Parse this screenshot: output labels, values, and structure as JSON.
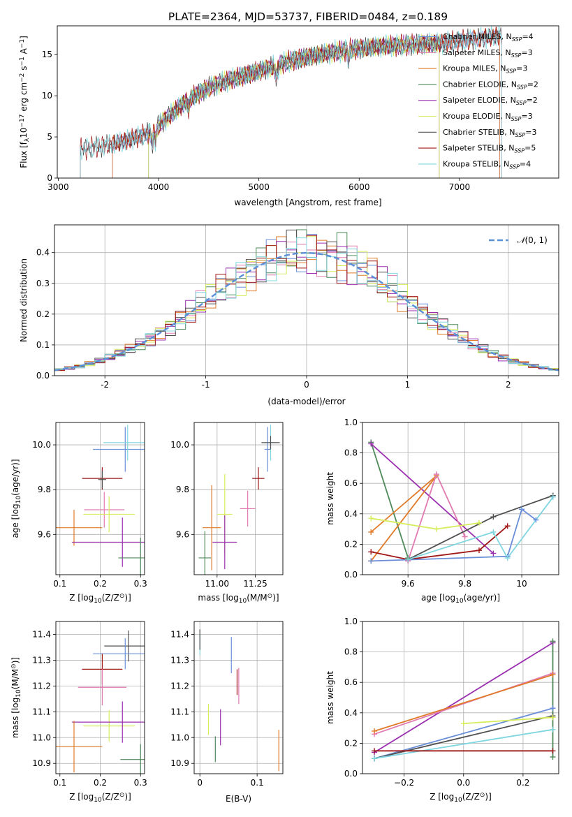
{
  "figure": {
    "title": "PLATE=2364, MJD=53737, FIBERID=0484, z=0.189"
  },
  "colors": {
    "chabrier_miles": "#6a8fd8",
    "salpeter_miles": "#e07ab0",
    "kroupa_miles": "#e07a28",
    "chabrier_elodie": "#4e8a5a",
    "salpeter_elodie": "#9a2fb0",
    "kroupa_elodie": "#d6ec5a",
    "chabrier_stelib": "#505050",
    "salpeter_stelib": "#a01818",
    "kroupa_stelib": "#7fd6e0",
    "gaussian": "#5b8fd8",
    "grid": "#b0b0b0"
  },
  "chart_data": [
    {
      "id": "spectrum",
      "type": "line",
      "xlabel": "wavelength [Angstrom, rest frame]",
      "ylabel_parts": [
        "Flux [f",
        "λ",
        "10",
        "−17",
        " erg cm",
        "−2",
        " s",
        "−1",
        " A",
        "−1",
        "]"
      ],
      "xlim": [
        2990,
        7990
      ],
      "ylim": [
        0,
        18.5
      ],
      "xticks": [
        3000,
        4000,
        5000,
        6000,
        7000
      ],
      "yticks": [
        0,
        5,
        10,
        15
      ],
      "grid": false,
      "legend_position": "right",
      "legend": [
        {
          "label": "Chabrier MILES, N",
          "sub": "SSP",
          "value": "=4",
          "color_key": "chabrier_miles"
        },
        {
          "label": "Salpeter MILES, N",
          "sub": "SSP",
          "value": "=3",
          "color_key": "salpeter_miles"
        },
        {
          "label": "Kroupa MILES, N",
          "sub": "SSP",
          "value": "=3",
          "color_key": "kroupa_miles"
        },
        {
          "label": "Chabrier ELODIE, N",
          "sub": "SSP",
          "value": "=2",
          "color_key": "chabrier_elodie"
        },
        {
          "label": "Salpeter ELODIE, N",
          "sub": "SSP",
          "value": "=2",
          "color_key": "salpeter_elodie"
        },
        {
          "label": "Kroupa ELODIE, N",
          "sub": "SSP",
          "value": "=3",
          "color_key": "kroupa_elodie"
        },
        {
          "label": "Chabrier STELIB, N",
          "sub": "SSP",
          "value": "=3",
          "color_key": "chabrier_stelib"
        },
        {
          "label": "Salpeter STELIB, N",
          "sub": "SSP",
          "value": "=5",
          "color_key": "salpeter_stelib"
        },
        {
          "label": "Kroupa STELIB, N",
          "sub": "SSP",
          "value": "=4",
          "color_key": "kroupa_stelib"
        }
      ],
      "continuum": {
        "x": [
          3200,
          3400,
          3600,
          3800,
          3950,
          4100,
          4300,
          4500,
          4700,
          5000,
          5300,
          5600,
          5900,
          6200,
          6500,
          6800,
          7100,
          7400
        ],
        "y": [
          3.5,
          3.8,
          4.3,
          5.0,
          5.8,
          7.5,
          9.6,
          11.0,
          11.9,
          13.0,
          14.2,
          15.0,
          15.6,
          16.0,
          16.2,
          16.4,
          16.8,
          17.3
        ]
      },
      "series_ranges": [
        {
          "color_key": "chabrier_miles",
          "x": [
            3540,
            7400
          ]
        },
        {
          "color_key": "salpeter_miles",
          "x": [
            3540,
            7400
          ]
        },
        {
          "color_key": "kroupa_miles",
          "x": [
            3540,
            7400
          ]
        },
        {
          "color_key": "chabrier_elodie",
          "x": [
            3900,
            6800
          ]
        },
        {
          "color_key": "salpeter_elodie",
          "x": [
            3900,
            6800
          ]
        },
        {
          "color_key": "kroupa_elodie",
          "x": [
            3900,
            6800
          ]
        },
        {
          "color_key": "chabrier_stelib",
          "x": [
            3220,
            7420
          ]
        },
        {
          "color_key": "salpeter_stelib",
          "x": [
            3220,
            7420
          ]
        },
        {
          "color_key": "kroupa_stelib",
          "x": [
            3220,
            7420
          ]
        }
      ]
    },
    {
      "id": "residual_hist",
      "type": "histogram",
      "xlabel": "(data-model)/error",
      "ylabel": "Normed distribution",
      "xlim": [
        -2.5,
        2.5
      ],
      "ylim": [
        0,
        0.49
      ],
      "xticks": [
        -2,
        -1,
        0,
        1,
        2
      ],
      "yticks": [
        0.0,
        0.1,
        0.2,
        0.3,
        0.4
      ],
      "grid": true,
      "legend_position": "top-right",
      "gaussian_label_parts": [
        "𝒩",
        "(0, 1)"
      ],
      "bin_width": 0.1
    },
    {
      "id": "age_vs_Z",
      "type": "errorbar",
      "xlabel_parts": [
        "Z [log",
        "10",
        "(Z/Z",
        "⊙",
        ")]"
      ],
      "ylabel_parts": [
        "age  [log",
        "10",
        "(age/yr)]"
      ],
      "xlim": [
        0.09,
        0.31
      ],
      "ylim": [
        9.42,
        10.1
      ],
      "xticks": [
        0.1,
        0.2,
        0.3
      ],
      "yticks": [
        9.6,
        9.8,
        10.0
      ],
      "grid": true,
      "points": [
        {
          "color_key": "chabrier_miles",
          "x": 0.262,
          "xerr": 0.08,
          "y": 9.98,
          "yerr": 0.1
        },
        {
          "color_key": "kroupa_stelib",
          "x": 0.268,
          "xerr": 0.06,
          "y": 10.01,
          "yerr": 0.08
        },
        {
          "color_key": "salpeter_stelib",
          "x": 0.205,
          "xerr": 0.05,
          "y": 9.85,
          "yerr": 0.05
        },
        {
          "color_key": "salpeter_miles",
          "x": 0.21,
          "xerr": 0.05,
          "y": 9.71,
          "yerr": 0.08
        },
        {
          "color_key": "kroupa_elodie",
          "x": 0.222,
          "xerr": 0.064,
          "y": 9.69,
          "yerr": 0.08
        },
        {
          "color_key": "kroupa_miles",
          "x": 0.135,
          "xerr": 0.07,
          "y": 9.63,
          "yerr": 0.08
        },
        {
          "color_key": "salpeter_elodie",
          "x": 0.255,
          "xerr": 0.125,
          "y": 9.565,
          "yerr": 0.11
        },
        {
          "color_key": "chabrier_elodie",
          "x": 0.3,
          "xerr": 0.055,
          "y": 9.495,
          "yerr": 0.09
        },
        {
          "color_key": "chabrier_stelib",
          "x": 0.205,
          "xerr": 0.01,
          "y": 9.845,
          "yerr": 0.04
        }
      ]
    },
    {
      "id": "age_vs_mass",
      "type": "errorbar",
      "xlabel_parts": [
        "mass [log",
        "10",
        "(M/M",
        "⊙",
        ")]"
      ],
      "xlim": [
        10.85,
        11.43
      ],
      "ylim": [
        9.42,
        10.1
      ],
      "xticks": [
        11.0,
        11.25
      ],
      "xtick_labels": [
        "11.00",
        "11.25"
      ],
      "yticks": [
        9.6,
        9.8,
        10.0
      ],
      "grid": true,
      "points": [
        {
          "color_key": "chabrier_miles",
          "x": 11.33,
          "xerr": 0.02,
          "y": 9.98,
          "yerr": 0.1
        },
        {
          "color_key": "kroupa_stelib",
          "x": 11.35,
          "xerr": 0.04,
          "y": 10.01,
          "yerr": 0.08
        },
        {
          "color_key": "chabrier_stelib",
          "x": 11.35,
          "xerr": 0.06,
          "y": 10.01,
          "yerr": 0.03
        },
        {
          "color_key": "salpeter_stelib",
          "x": 11.27,
          "xerr": 0.04,
          "y": 9.85,
          "yerr": 0.05
        },
        {
          "color_key": "salpeter_miles",
          "x": 11.2,
          "xerr": 0.05,
          "y": 9.715,
          "yerr": 0.08
        },
        {
          "color_key": "kroupa_elodie",
          "x": 11.05,
          "xerr": 0.05,
          "y": 9.69,
          "yerr": 0.18
        },
        {
          "color_key": "kroupa_miles",
          "x": 10.965,
          "xerr": 0.06,
          "y": 9.63,
          "yerr": 0.19
        },
        {
          "color_key": "salpeter_elodie",
          "x": 11.05,
          "xerr": 0.08,
          "y": 9.565,
          "yerr": 0.12
        },
        {
          "color_key": "chabrier_elodie",
          "x": 10.92,
          "xerr": 0.04,
          "y": 9.495,
          "yerr": 0.12
        }
      ]
    },
    {
      "id": "weight_vs_age",
      "type": "line",
      "xlabel_parts": [
        "age  [log",
        "10",
        "(age/yr)]"
      ],
      "ylabel": "mass weight",
      "xlim": [
        9.44,
        10.13
      ],
      "ylim": [
        0,
        1.0
      ],
      "xticks": [
        9.6,
        9.8,
        10.0
      ],
      "yticks": [
        0.0,
        0.2,
        0.4,
        0.6,
        0.8,
        1.0
      ],
      "grid": true,
      "series": [
        {
          "color_key": "chabrier_elodie",
          "x": [
            9.47,
            9.6
          ],
          "y": [
            0.87,
            0.11
          ]
        },
        {
          "color_key": "salpeter_elodie",
          "x": [
            9.47,
            9.9
          ],
          "y": [
            0.86,
            0.14
          ]
        },
        {
          "color_key": "kroupa_miles",
          "x": [
            9.47,
            9.7,
            9.47
          ],
          "y": [
            0.09,
            0.65,
            0.28
          ]
        },
        {
          "color_key": "salpeter_miles",
          "x": [
            9.6,
            9.7,
            9.8
          ],
          "y": [
            0.09,
            0.66,
            0.25
          ]
        },
        {
          "color_key": "kroupa_elodie",
          "x": [
            9.47,
            9.7,
            9.85
          ],
          "y": [
            0.37,
            0.3,
            0.34
          ]
        },
        {
          "color_key": "chabrier_stelib",
          "x": [
            9.6,
            9.9,
            10.11
          ],
          "y": [
            0.1,
            0.38,
            0.52
          ]
        },
        {
          "color_key": "salpeter_stelib",
          "x": [
            9.47,
            9.6,
            9.85,
            9.95
          ],
          "y": [
            0.15,
            0.1,
            0.16,
            0.32
          ]
        },
        {
          "color_key": "chabrier_miles",
          "x": [
            9.47,
            9.95,
            10.0,
            10.05
          ],
          "y": [
            0.09,
            0.12,
            0.43,
            0.36
          ]
        },
        {
          "color_key": "kroupa_stelib",
          "x": [
            9.6,
            9.9,
            9.95,
            10.11
          ],
          "y": [
            0.1,
            0.28,
            0.11,
            0.51
          ]
        }
      ]
    },
    {
      "id": "mass_vs_Z",
      "type": "errorbar",
      "xlabel_parts": [
        "Z [log",
        "10",
        "(Z/Z",
        "⊙",
        ")]"
      ],
      "ylabel_parts": [
        "mass [log",
        "10",
        "(M/M",
        "⊙",
        ")]"
      ],
      "xlim": [
        0.09,
        0.31
      ],
      "ylim": [
        10.86,
        11.45
      ],
      "xticks": [
        0.1,
        0.2,
        0.3
      ],
      "yticks": [
        10.9,
        11.0,
        11.1,
        11.2,
        11.3,
        11.4
      ],
      "grid": true,
      "points": [
        {
          "color_key": "chabrier_stelib",
          "x": 0.27,
          "xerr": 0.06,
          "y": 11.355,
          "yerr": 0.06
        },
        {
          "color_key": "chabrier_miles",
          "x": 0.262,
          "xerr": 0.08,
          "y": 11.325,
          "yerr": 0.06
        },
        {
          "color_key": "salpeter_stelib",
          "x": 0.205,
          "xerr": 0.05,
          "y": 11.265,
          "yerr": 0.06
        },
        {
          "color_key": "salpeter_miles",
          "x": 0.205,
          "xerr": 0.06,
          "y": 11.195,
          "yerr": 0.07
        },
        {
          "color_key": "kroupa_elodie",
          "x": 0.222,
          "xerr": 0.064,
          "y": 11.045,
          "yerr": 0.06
        },
        {
          "color_key": "salpeter_elodie",
          "x": 0.255,
          "xerr": 0.125,
          "y": 11.06,
          "yerr": 0.08
        },
        {
          "color_key": "kroupa_miles",
          "x": 0.135,
          "xerr": 0.07,
          "y": 10.965,
          "yerr": 0.1
        },
        {
          "color_key": "chabrier_elodie",
          "x": 0.3,
          "xerr": 0.05,
          "y": 10.915,
          "yerr": 0.06
        }
      ]
    },
    {
      "id": "mass_vs_EBV",
      "type": "errorbar",
      "xlabel": "E(B-V)",
      "xlim": [
        -0.01,
        0.145
      ],
      "ylim": [
        10.86,
        11.45
      ],
      "xticks": [
        0.0,
        0.1
      ],
      "yticks": [
        10.9,
        11.0,
        11.1,
        11.2,
        11.3,
        11.4
      ],
      "grid": true,
      "points": [
        {
          "color_key": "kroupa_stelib",
          "x": 0.0,
          "y": 11.36,
          "yerr": 0.04
        },
        {
          "color_key": "chabrier_stelib",
          "x": 0.0,
          "y": 11.38,
          "yerr": 0.04
        },
        {
          "color_key": "chabrier_miles",
          "x": 0.055,
          "y": 11.32,
          "yerr": 0.07
        },
        {
          "color_key": "salpeter_stelib",
          "x": 0.065,
          "y": 11.215,
          "yerr": 0.05
        },
        {
          "color_key": "salpeter_miles",
          "x": 0.068,
          "y": 11.2,
          "yerr": 0.07
        },
        {
          "color_key": "kroupa_elodie",
          "x": 0.015,
          "y": 11.07,
          "yerr": 0.06
        },
        {
          "color_key": "salpeter_elodie",
          "x": 0.036,
          "y": 11.04,
          "yerr": 0.07
        },
        {
          "color_key": "chabrier_elodie",
          "x": 0.027,
          "y": 10.955,
          "yerr": 0.05
        },
        {
          "color_key": "kroupa_miles",
          "x": 0.138,
          "y": 10.95,
          "yerr": 0.08
        }
      ]
    },
    {
      "id": "weight_vs_Z",
      "type": "line",
      "xlabel_parts": [
        "Z [log",
        "10",
        "(Z/Z",
        "⊙",
        ")]"
      ],
      "ylabel": "mass weight",
      "xlim": [
        -0.34,
        0.32
      ],
      "ylim": [
        0,
        1.0
      ],
      "xticks": [
        -0.2,
        0.0,
        0.2
      ],
      "xtick_labels": [
        "−0.2",
        "0.0",
        "0.2"
      ],
      "yticks": [
        0.0,
        0.2,
        0.4,
        0.6,
        0.8,
        1.0
      ],
      "grid": true,
      "series": [
        {
          "color_key": "salpeter_elodie",
          "x": [
            -0.3,
            0.3
          ],
          "y": [
            0.14,
            0.86
          ]
        },
        {
          "color_key": "salpeter_miles",
          "x": [
            -0.3,
            0.3
          ],
          "y": [
            0.26,
            0.66
          ]
        },
        {
          "color_key": "kroupa_miles",
          "x": [
            -0.3,
            0.3
          ],
          "y": [
            0.28,
            0.65
          ]
        },
        {
          "color_key": "chabrier_miles",
          "x": [
            -0.3,
            0.3
          ],
          "y": [
            0.1,
            0.43
          ]
        },
        {
          "color_key": "chabrier_stelib",
          "x": [
            -0.3,
            0.3
          ],
          "y": [
            0.1,
            0.38
          ]
        },
        {
          "color_key": "kroupa_elodie",
          "x": [
            0.0,
            0.3
          ],
          "y": [
            0.33,
            0.37
          ]
        },
        {
          "color_key": "kroupa_stelib",
          "x": [
            -0.3,
            0.3
          ],
          "y": [
            0.1,
            0.29
          ]
        },
        {
          "color_key": "salpeter_stelib",
          "x": [
            -0.3,
            0.3
          ],
          "y": [
            0.15,
            0.15
          ]
        },
        {
          "color_key": "chabrier_elodie",
          "x": [
            0.3,
            0.3
          ],
          "y": [
            0.11,
            0.87
          ]
        }
      ]
    }
  ]
}
